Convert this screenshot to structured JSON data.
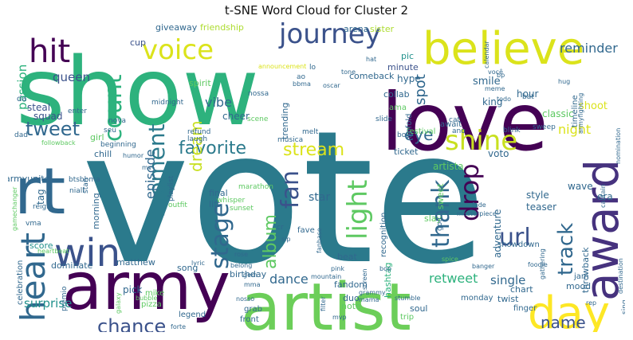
{
  "title": "t-SNE Word Cloud for Cluster 2",
  "palette": [
    "#440154",
    "#31688e",
    "#2b7a8c",
    "#21918c",
    "#2db27d",
    "#5ec962",
    "#addc30",
    "#dbe31b",
    "#fde725",
    "#3b528b"
  ],
  "words": [
    {
      "text": "vote",
      "color": "#2b7a8c"
    },
    {
      "text": "show",
      "color": "#2db27d"
    },
    {
      "text": "love",
      "color": "#440154"
    },
    {
      "text": "artist",
      "color": "#6cce59"
    },
    {
      "text": "army",
      "color": "#440154"
    },
    {
      "text": "rt",
      "color": "#31688e"
    },
    {
      "text": "believe",
      "color": "#dbe31b"
    },
    {
      "text": "award",
      "color": "#46327e"
    },
    {
      "text": "day",
      "color": "#fde725"
    },
    {
      "text": "win",
      "color": "#3b528b"
    },
    {
      "text": "heart",
      "color": "#31688e"
    },
    {
      "text": "journey",
      "color": "#3b528b"
    },
    {
      "text": "hit",
      "color": "#440154"
    },
    {
      "text": "voice",
      "color": "#dbe31b"
    },
    {
      "text": "shine",
      "color": "#c8e020"
    },
    {
      "text": "count",
      "color": "#2db27d"
    },
    {
      "text": "moment",
      "color": "#2b7a8c"
    },
    {
      "text": "light",
      "color": "#5ec962"
    },
    {
      "text": "drop",
      "color": "#440154"
    },
    {
      "text": "url",
      "color": "#3b528b"
    },
    {
      "text": "tweet",
      "color": "#31688e"
    },
    {
      "text": "favorite",
      "color": "#2b7a8c"
    },
    {
      "text": "stream",
      "color": "#dbe31b"
    },
    {
      "text": "thank",
      "color": "#31688e"
    },
    {
      "text": "eye",
      "color": "#31688e"
    },
    {
      "text": "track",
      "color": "#31688e"
    },
    {
      "text": "stage",
      "color": "#31688e"
    },
    {
      "text": "fan",
      "color": "#3b528b"
    },
    {
      "text": "chance",
      "color": "#3b528b"
    },
    {
      "text": "name",
      "color": "#3b528b"
    },
    {
      "text": "album",
      "color": "#5ec962"
    },
    {
      "text": "dream",
      "color": "#c8e020"
    },
    {
      "text": "episode",
      "color": "#31688e"
    },
    {
      "text": "vibe",
      "color": "#31688e"
    },
    {
      "text": "queen",
      "color": "#3b528b"
    },
    {
      "text": "passion",
      "color": "#2db27d"
    },
    {
      "text": "spot",
      "color": "#31688e"
    },
    {
      "text": "reminder",
      "color": "#31688e"
    },
    {
      "text": "night",
      "color": "#dbe31b"
    },
    {
      "text": "dance",
      "color": "#31688e"
    },
    {
      "text": "retweet",
      "color": "#2db27d"
    },
    {
      "text": "single",
      "color": "#31688e"
    },
    {
      "text": "surprise",
      "color": "#21918c"
    },
    {
      "text": "star",
      "color": "#31688e"
    },
    {
      "text": "giveaway",
      "color": "#31688e"
    },
    {
      "text": "friendship",
      "color": "#addc30"
    },
    {
      "text": "arena",
      "color": "#31688e"
    },
    {
      "text": "sister",
      "color": "#addc30"
    },
    {
      "text": "minute",
      "color": "#3b528b"
    },
    {
      "text": "comeback",
      "color": "#31688e"
    },
    {
      "text": "pic",
      "color": "#21918c"
    },
    {
      "text": "cup",
      "color": "#3b528b"
    },
    {
      "text": "hype",
      "color": "#31688e"
    },
    {
      "text": "collab",
      "color": "#31688e"
    },
    {
      "text": "smile",
      "color": "#31688e"
    },
    {
      "text": "king",
      "color": "#31688e"
    },
    {
      "text": "hour",
      "color": "#31688e"
    },
    {
      "text": "shoot",
      "color": "#dbe31b"
    },
    {
      "text": "classic",
      "color": "#5ec962"
    },
    {
      "text": "cheer",
      "color": "#31688e"
    },
    {
      "text": "trending",
      "color": "#31688e"
    },
    {
      "text": "spirit",
      "color": "#5ec962"
    },
    {
      "text": "squad",
      "color": "#3b528b"
    },
    {
      "text": "steal",
      "color": "#3b528b"
    },
    {
      "text": "tag",
      "color": "#31688e"
    },
    {
      "text": "final",
      "color": "#31688e"
    },
    {
      "text": "lift",
      "color": "#31688e"
    },
    {
      "text": "armyunite",
      "color": "#31688e"
    },
    {
      "text": "girl",
      "color": "#5ec962"
    },
    {
      "text": "score",
      "color": "#21918c"
    },
    {
      "text": "morning",
      "color": "#31688e"
    },
    {
      "text": "pick",
      "color": "#31688e"
    },
    {
      "text": "matthew",
      "color": "#31688e"
    },
    {
      "text": "dominate",
      "color": "#31688e"
    },
    {
      "text": "song",
      "color": "#31688e"
    },
    {
      "text": "birthday",
      "color": "#31688e"
    },
    {
      "text": "fandom",
      "color": "#31688e"
    },
    {
      "text": "duo",
      "color": "#31688e"
    },
    {
      "text": "note",
      "color": "#5ec962"
    },
    {
      "text": "hashtag",
      "color": "#2db27d"
    },
    {
      "text": "recognition",
      "color": "#31688e"
    },
    {
      "text": "voto",
      "color": "#31688e"
    },
    {
      "text": "adventure",
      "color": "#31688e"
    },
    {
      "text": "ticket",
      "color": "#31688e"
    },
    {
      "text": "artista",
      "color": "#5ec962"
    },
    {
      "text": "sweet",
      "color": "#5ec962"
    },
    {
      "text": "slay",
      "color": "#5ec962"
    },
    {
      "text": "beat",
      "color": "#31688e"
    },
    {
      "text": "soul",
      "color": "#31688e"
    },
    {
      "text": "twist",
      "color": "#31688e"
    },
    {
      "text": "chart",
      "color": "#31688e"
    },
    {
      "text": "mood",
      "color": "#31688e"
    },
    {
      "text": "finger",
      "color": "#31688e"
    },
    {
      "text": "jam",
      "color": "#31688e"
    },
    {
      "text": "style",
      "color": "#31688e"
    },
    {
      "text": "teaser",
      "color": "#31688e"
    },
    {
      "text": "wave",
      "color": "#31688e"
    },
    {
      "text": "era",
      "color": "#31688e"
    },
    {
      "text": "throwback",
      "color": "#31688e"
    },
    {
      "text": "showdown",
      "color": "#31688e"
    },
    {
      "text": "celebration",
      "color": "#31688e"
    },
    {
      "text": "legend",
      "color": "#31688e"
    },
    {
      "text": "grab",
      "color": "#31688e"
    },
    {
      "text": "front",
      "color": "#31688e"
    },
    {
      "text": "pizza",
      "color": "#5ec962"
    },
    {
      "text": "mike",
      "color": "#5ec962"
    },
    {
      "text": "fave",
      "color": "#31688e"
    },
    {
      "text": "monday",
      "color": "#31688e"
    },
    {
      "text": "trip",
      "color": "#5ec962"
    },
    {
      "text": "timeline",
      "color": "#31688e"
    },
    {
      "text": "festival",
      "color": "#5ec962"
    },
    {
      "text": "await",
      "color": "#31688e"
    },
    {
      "text": "unfold",
      "color": "#31688e"
    },
    {
      "text": "ama",
      "color": "#5ec962"
    },
    {
      "text": "chill",
      "color": "#31688e"
    },
    {
      "text": "playlist",
      "color": "#31688e"
    },
    {
      "text": "refund",
      "color": "#31688e"
    },
    {
      "text": "laugh",
      "color": "#31688e"
    },
    {
      "text": "marathon",
      "color": "#5ec962"
    },
    {
      "text": "whisper",
      "color": "#5ec962"
    },
    {
      "text": "sunset",
      "color": "#5ec962"
    },
    {
      "text": "scene",
      "color": "#5ec962"
    },
    {
      "text": "outfit",
      "color": "#5ec962"
    },
    {
      "text": "midnight",
      "color": "#31688e"
    },
    {
      "text": "enter",
      "color": "#31688e"
    },
    {
      "text": "nova",
      "color": "#31688e"
    },
    {
      "text": "seu",
      "color": "#31688e"
    },
    {
      "text": "da",
      "color": "#31688e"
    },
    {
      "text": "dad",
      "color": "#31688e"
    },
    {
      "text": "beginning",
      "color": "#31688e"
    },
    {
      "text": "btsbbma",
      "color": "#31688e"
    },
    {
      "text": "niall",
      "color": "#31688e"
    },
    {
      "text": "vma",
      "color": "#31688e"
    },
    {
      "text": "reign",
      "color": "#31688e"
    },
    {
      "text": "stan",
      "color": "#31688e"
    },
    {
      "text": "god",
      "color": "#31688e"
    },
    {
      "text": "cat",
      "color": "#31688e"
    },
    {
      "text": "ano",
      "color": "#31688e"
    },
    {
      "text": "blink",
      "color": "#31688e"
    },
    {
      "text": "bat",
      "color": "#31688e"
    },
    {
      "text": "sweep",
      "color": "#31688e"
    },
    {
      "text": "boy",
      "color": "#31688e"
    },
    {
      "text": "slide",
      "color": "#31688e"
    },
    {
      "text": "melt",
      "color": "#31688e"
    },
    {
      "text": "música",
      "color": "#31688e"
    },
    {
      "text": "nossa",
      "color": "#31688e"
    },
    {
      "text": "ao",
      "color": "#31688e"
    },
    {
      "text": "lo",
      "color": "#31688e"
    },
    {
      "text": "oscar",
      "color": "#31688e"
    },
    {
      "text": "bbma",
      "color": "#31688e"
    },
    {
      "text": "announcement",
      "color": "#dbe31b"
    },
    {
      "text": "hat",
      "color": "#31688e"
    },
    {
      "text": "tone",
      "color": "#31688e"
    },
    {
      "text": "você",
      "color": "#31688e"
    },
    {
      "text": "meme",
      "color": "#31688e"
    },
    {
      "text": "todo",
      "color": "#31688e"
    },
    {
      "text": "calendar",
      "color": "#31688e"
    },
    {
      "text": "bp",
      "color": "#31688e"
    },
    {
      "text": "hug",
      "color": "#31688e"
    },
    {
      "text": "armyfighting",
      "color": "#31688e"
    },
    {
      "text": "nomination",
      "color": "#31688e"
    },
    {
      "text": "captain",
      "color": "#31688e"
    },
    {
      "text": "sing",
      "color": "#31688e"
    },
    {
      "text": "destination",
      "color": "#31688e"
    },
    {
      "text": "rep",
      "color": "#31688e"
    },
    {
      "text": "foodie",
      "color": "#31688e"
    },
    {
      "text": "gathering",
      "color": "#31688e"
    },
    {
      "text": "banger",
      "color": "#31688e"
    },
    {
      "text": "spice",
      "color": "#5ec962"
    },
    {
      "text": "bop",
      "color": "#31688e"
    },
    {
      "text": "fade",
      "color": "#31688e"
    },
    {
      "text": "masterpiece",
      "color": "#31688e"
    },
    {
      "text": "stumble",
      "color": "#31688e"
    },
    {
      "text": "mvp",
      "color": "#31688e"
    },
    {
      "text": "filter",
      "color": "#31688e"
    },
    {
      "text": "grammy",
      "color": "#31688e"
    },
    {
      "text": "mama",
      "color": "#31688e"
    },
    {
      "text": "screen",
      "color": "#31688e"
    },
    {
      "text": "pink",
      "color": "#31688e"
    },
    {
      "text": "fanbase",
      "color": "#31688e"
    },
    {
      "text": "mountain",
      "color": "#31688e"
    },
    {
      "text": "sip",
      "color": "#31688e"
    },
    {
      "text": "cr",
      "color": "#31688e"
    },
    {
      "text": "belong",
      "color": "#31688e"
    },
    {
      "text": "gem",
      "color": "#31688e"
    },
    {
      "text": "rose",
      "color": "#31688e"
    },
    {
      "text": "mma",
      "color": "#31688e"
    },
    {
      "text": "nosso",
      "color": "#31688e"
    },
    {
      "text": "lyric",
      "color": "#31688e"
    },
    {
      "text": "heartbeat",
      "color": "#5ec962"
    },
    {
      "text": "gamechanger",
      "color": "#5ec962"
    },
    {
      "text": "prêmio",
      "color": "#31688e"
    },
    {
      "text": "galaxy",
      "color": "#5ec962"
    },
    {
      "text": "bubble",
      "color": "#5ec962"
    },
    {
      "text": "forte",
      "color": "#31688e"
    },
    {
      "text": "followback",
      "color": "#5ec962"
    },
    {
      "text": "humor",
      "color": "#31688e"
    },
    {
      "text": "mv",
      "color": "#31688e"
    }
  ]
}
